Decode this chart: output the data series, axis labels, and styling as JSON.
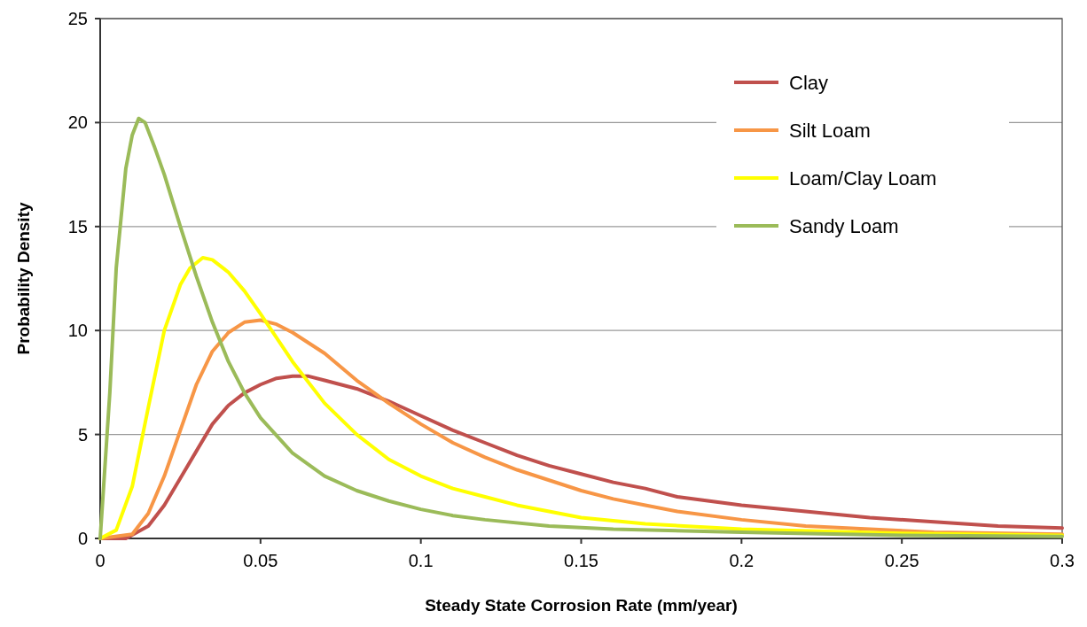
{
  "chart_data": {
    "type": "line",
    "xlabel": "Steady State Corrosion Rate (mm/year)",
    "ylabel": "Probability Density",
    "xlim": [
      0,
      0.3
    ],
    "ylim": [
      0,
      25
    ],
    "xticks": [
      0,
      0.05,
      0.1,
      0.15,
      0.2,
      0.25,
      0.3
    ],
    "yticks": [
      0,
      5,
      10,
      15,
      20,
      25
    ],
    "grid": "y",
    "legend": "top right",
    "marker": "none",
    "line_style": "solid",
    "series": [
      {
        "name": "Clay",
        "color": "#c0504d",
        "x": [
          0,
          0.008,
          0.015,
          0.02,
          0.025,
          0.03,
          0.035,
          0.04,
          0.045,
          0.05,
          0.055,
          0.06,
          0.065,
          0.07,
          0.08,
          0.09,
          0.1,
          0.11,
          0.12,
          0.13,
          0.14,
          0.15,
          0.16,
          0.17,
          0.18,
          0.19,
          0.2,
          0.22,
          0.24,
          0.26,
          0.28,
          0.3
        ],
        "values": [
          0,
          0,
          0.6,
          1.6,
          2.9,
          4.2,
          5.5,
          6.4,
          7.0,
          7.4,
          7.7,
          7.8,
          7.8,
          7.6,
          7.2,
          6.6,
          5.9,
          5.2,
          4.6,
          4.0,
          3.5,
          3.1,
          2.7,
          2.4,
          2.0,
          1.8,
          1.6,
          1.3,
          1.0,
          0.8,
          0.6,
          0.5
        ]
      },
      {
        "name": "Silt Loam",
        "color": "#f79646",
        "x": [
          0,
          0.01,
          0.015,
          0.02,
          0.025,
          0.03,
          0.035,
          0.04,
          0.045,
          0.05,
          0.055,
          0.06,
          0.07,
          0.08,
          0.09,
          0.1,
          0.11,
          0.12,
          0.13,
          0.14,
          0.15,
          0.16,
          0.17,
          0.18,
          0.2,
          0.22,
          0.24,
          0.26,
          0.3
        ],
        "values": [
          0,
          0.2,
          1.2,
          3.0,
          5.2,
          7.4,
          9.0,
          9.9,
          10.4,
          10.5,
          10.3,
          9.9,
          8.9,
          7.6,
          6.5,
          5.5,
          4.6,
          3.9,
          3.3,
          2.8,
          2.3,
          1.9,
          1.6,
          1.3,
          0.9,
          0.6,
          0.45,
          0.3,
          0.2
        ]
      },
      {
        "name": "Loam/Clay Loam",
        "color": "#ffff00",
        "x": [
          0,
          0.005,
          0.01,
          0.015,
          0.02,
          0.025,
          0.028,
          0.032,
          0.035,
          0.04,
          0.045,
          0.05,
          0.06,
          0.07,
          0.08,
          0.09,
          0.1,
          0.11,
          0.12,
          0.13,
          0.14,
          0.15,
          0.17,
          0.2,
          0.25,
          0.3
        ],
        "values": [
          0,
          0.4,
          2.5,
          6.3,
          10.0,
          12.2,
          13.0,
          13.5,
          13.4,
          12.8,
          11.9,
          10.8,
          8.5,
          6.5,
          5.0,
          3.8,
          3.0,
          2.4,
          2.0,
          1.6,
          1.3,
          1.0,
          0.7,
          0.45,
          0.25,
          0.15
        ]
      },
      {
        "name": "Sandy Loam",
        "color": "#9bbb59",
        "x": [
          0,
          0.003,
          0.005,
          0.008,
          0.01,
          0.012,
          0.014,
          0.017,
          0.02,
          0.025,
          0.03,
          0.035,
          0.04,
          0.045,
          0.05,
          0.06,
          0.07,
          0.08,
          0.09,
          0.1,
          0.11,
          0.12,
          0.14,
          0.16,
          0.2,
          0.25,
          0.3
        ],
        "values": [
          0,
          7,
          13,
          17.8,
          19.4,
          20.2,
          20.0,
          18.8,
          17.5,
          15,
          12.6,
          10.4,
          8.5,
          7.0,
          5.8,
          4.1,
          3.0,
          2.3,
          1.8,
          1.4,
          1.1,
          0.9,
          0.6,
          0.45,
          0.3,
          0.15,
          0.1
        ]
      }
    ]
  }
}
